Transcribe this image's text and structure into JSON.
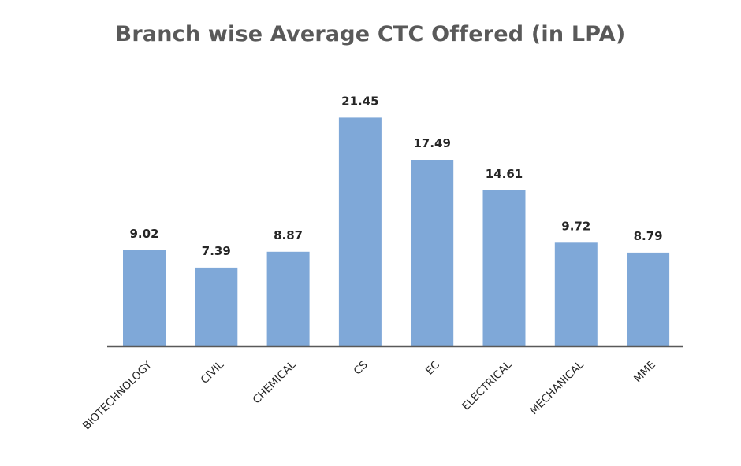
{
  "chart_data": {
    "type": "bar",
    "title": "Branch wise Average CTC Offered (in LPA)",
    "xlabel": "",
    "ylabel": "",
    "categories": [
      "BIOTECHNOLOGY",
      "CIVIL",
      "CHEMICAL",
      "CS",
      "EC",
      "ELECTRICAL",
      "MECHANICAL",
      "MME"
    ],
    "values": [
      9.02,
      7.39,
      8.87,
      21.45,
      17.49,
      14.61,
      9.72,
      8.79
    ],
    "value_labels": [
      "9.02",
      "7.39",
      "8.87",
      "21.45",
      "17.49",
      "14.61",
      "9.72",
      "8.79"
    ],
    "ylim": [
      0,
      25
    ],
    "grid": false,
    "legend": "none",
    "colors": {
      "bar": "#7fa8d8",
      "axis": "#595959",
      "title": "#595959",
      "text": "#262626"
    }
  }
}
